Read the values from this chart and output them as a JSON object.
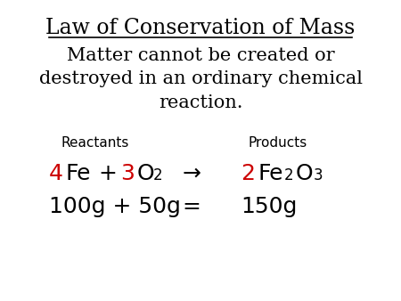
{
  "title": "Law of Conservation of Mass",
  "subtitle": "Matter cannot be created or\ndestroyed in an ordinary chemical\nreaction.",
  "reactants_label": "Reactants",
  "products_label": "Products",
  "background_color": "#ffffff",
  "title_color": "#000000",
  "subtitle_color": "#000000",
  "label_color": "#000000",
  "red_color": "#cc0000",
  "black_color": "#000000",
  "title_fontsize": 17,
  "subtitle_fontsize": 15,
  "label_fontsize": 11,
  "equation_fontsize": 18,
  "mass_fontsize": 18,
  "sub_fontsize": 12
}
